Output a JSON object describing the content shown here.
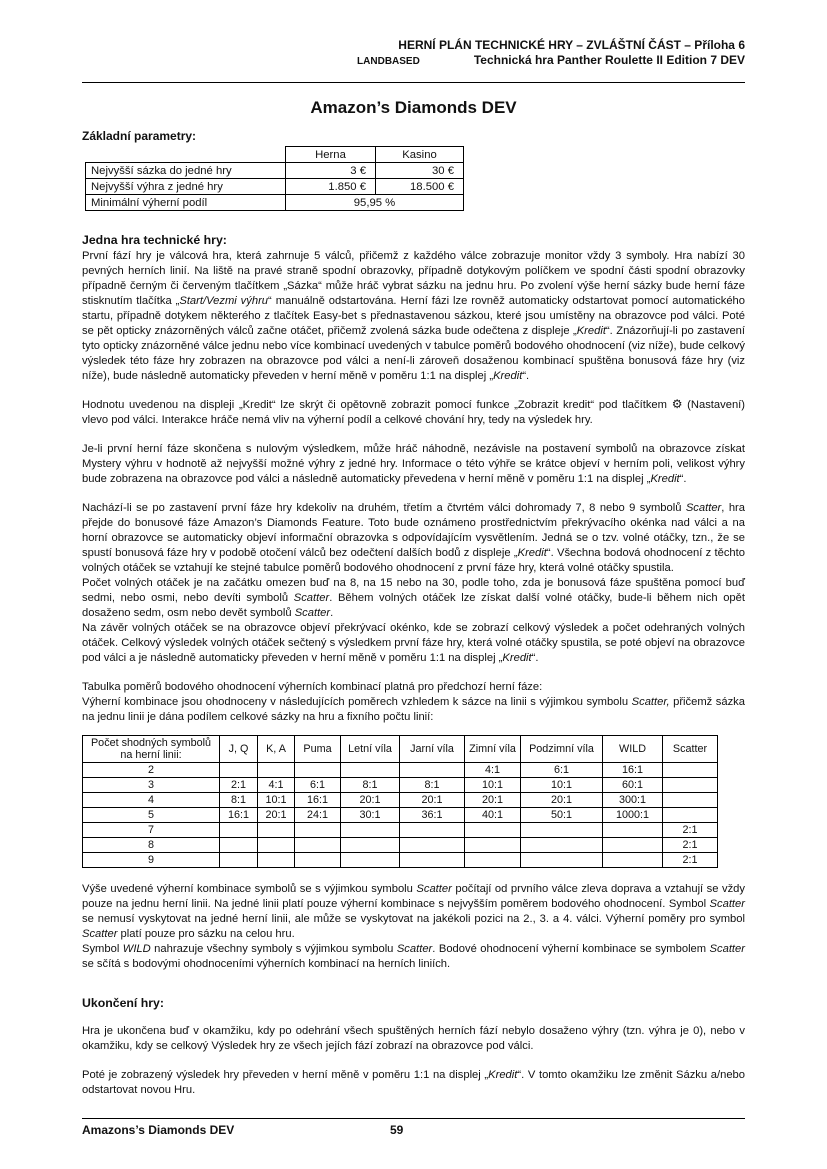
{
  "header": {
    "line1": "HERNÍ PLÁN TECHNICKÉ HRY – ZVLÁŠTNÍ ČÁST – Příloha 6",
    "landbased": "LANDBASED",
    "line2": "Technická hra Panther Roulette II Edition 7 DEV"
  },
  "title": "Amazon’s Diamonds DEV",
  "icons": {
    "gear": "⚙"
  },
  "params": {
    "heading": "Základní parametry:",
    "col_headers": [
      "Herna",
      "Kasino"
    ],
    "rows": [
      {
        "label": "Nejvyšší sázka do jedné hry",
        "herna": "3 €",
        "kasino": "30 €"
      },
      {
        "label": "Nejvyšší výhra z jedné hry",
        "herna": "1.850 €",
        "kasino": "18.500 €"
      },
      {
        "label": "Minimální výherní podíl",
        "span": "95,95 %"
      }
    ]
  },
  "body": {
    "heading1": "Jedna hra technické hry:",
    "p1": [
      {
        "t": "První fází hry je válcová hra, která zahrnuje 5 válců, přičemž z každého válce zobrazuje monitor vždy 3 symboly. Hra nabízí 30 pevných herních linií. Na liště na pravé straně spodní obrazovky, případně dotykovým políčkem ve spodní části spodní obrazovky případně černým či červeným tlačítkem „Sázka“ může hráč vybrat sázku na jednu hru. Po zvolení výše herní sázky bude herní fáze stisknutím tlačítka „"
      },
      {
        "t": "Start/Vezmi výhru",
        "i": true
      },
      {
        "t": "“ manuálně odstartována. Herní fázi lze rovněž automaticky odstartovat pomocí automatického startu, případně dotykem některého z tlačítek Easy-bet s přednastavenou sázkou, které jsou umístěny na obrazovce pod válci. Poté se pět opticky znázorněných válců začne otáčet, přičemž zvolená sázka bude odečtena z displeje „"
      },
      {
        "t": "Kredit",
        "i": true
      },
      {
        "t": "“. Znázorňují-li po zastavení tyto opticky znázorněné válce jednu nebo více kombinací uvedených v tabulce poměrů bodového ohodnocení (viz níže), bude celkový výsledek této fáze hry zobrazen na obrazovce pod válci a není-li zároveň dosaženou kombinací spuštěna bonusová fáze hry (viz níže), bude následně automaticky převeden v herní měně v poměru 1:1 na displej „"
      },
      {
        "t": "Kredit",
        "i": true
      },
      {
        "t": "“."
      }
    ],
    "p2": [
      {
        "t": "Hodnotu uvedenou na displeji „Kredit“ lze skrýt či opětovně zobrazit pomocí funkce „Zobrazit kredit“ pod tlačítkem "
      },
      {
        "icon": "gear"
      },
      {
        "t": " (Nastavení) vlevo pod válci. Interakce hráče nemá vliv na výherní podíl a celkové chování hry, tedy na výsledek hry."
      }
    ],
    "p3": [
      {
        "t": "Je-li první herní fáze skončena s nulovým výsledkem, může hráč náhodně, nezávisle na postavení symbolů na obrazovce získat Mystery výhru v hodnotě až nejvyšší možné výhry z jedné hry. Informace o této výhře se krátce objeví v herním poli, velikost výhry bude zobrazena na obrazovce pod válci a následně automaticky převedena v herní měně v poměru 1:1 na displej „"
      },
      {
        "t": "Kredit",
        "i": true
      },
      {
        "t": "“."
      }
    ],
    "p4a": [
      {
        "t": "Nachází-li se po zastavení první fáze hry kdekoliv na druhém, třetím a čtvrtém válci dohromady 7, 8 nebo 9 symbolů "
      },
      {
        "t": "Scatter",
        "i": true
      },
      {
        "t": ", hra přejde do bonusové fáze Amazon’s Diamonds Feature. Toto bude oznámeno prostřednictvím překrývacího okénka nad válci a na horní obrazovce se automaticky objeví informační obrazovka s odpovídajícím vysvětlením. Jedná se o tzv. volné otáčky, tzn., že se spustí bonusová fáze hry v podobě otočení válců bez odečtení dalších bodů z displeje „"
      },
      {
        "t": "Kredit",
        "i": true
      },
      {
        "t": "“. Všechna bodová ohodnocení z těchto volných otáček se vztahují ke stejné tabulce poměrů bodového ohodnocení z první fáze hry, která volné otáčky spustila."
      }
    ],
    "p4b": [
      {
        "t": "Počet volných otáček je na začátku omezen buď na 8, na 15 nebo na 30, podle toho, zda je bonusová fáze spuštěna pomocí buď sedmi, nebo osmi, nebo devíti symbolů "
      },
      {
        "t": "Scatter",
        "i": true
      },
      {
        "t": ". Během volných otáček lze získat další volné otáčky, bude-li během nich opět dosaženo sedm, osm nebo devět symbolů "
      },
      {
        "t": "Scatter",
        "i": true
      },
      {
        "t": "."
      }
    ],
    "p4c": [
      {
        "t": "Na závěr volných otáček se na obrazovce objeví překrývací okénko, kde se zobrazí celkový výsledek a počet odehraných volných otáček. Celkový výsledek volných otáček sečtený s výsledkem první fáze hry, která volné otáčky spustila, se poté objeví na obrazovce pod válci a je následně automaticky převeden v herní měně v poměru 1:1 na displej „"
      },
      {
        "t": "Kredit",
        "i": true
      },
      {
        "t": "“."
      }
    ],
    "p5a": [
      {
        "t": "Tabulka poměrů bodového ohodnocení výherních kombinací platná pro předchozí herní fáze:"
      }
    ],
    "p5b": [
      {
        "t": "Výherní kombinace jsou ohodnoceny v následujících poměrech vzhledem k sázce na linii s výjimkou symbolu "
      },
      {
        "t": "Scatter,",
        "i": true
      },
      {
        "t": " přičemž sázka na jednu linii je dána podílem celkové sázky na hru a fixního počtu linií:"
      }
    ],
    "p6a": [
      {
        "t": "Výše uvedené výherní kombinace symbolů se s výjimkou symbolu "
      },
      {
        "t": "Scatter",
        "i": true
      },
      {
        "t": " počítají od prvního válce zleva doprava a vztahují se vždy pouze na jednu herní linii. Na jedné linii platí pouze výherní kombinace s nejvyšším poměrem bodového ohodnocení. Symbol "
      },
      {
        "t": "Scatter",
        "i": true
      },
      {
        "t": " se nemusí vyskytovat na jedné herní linii, ale může se vyskytovat na jakékoli pozici na 2., 3. a 4. válci. Výherní poměry pro symbol "
      },
      {
        "t": "Scatter",
        "i": true
      },
      {
        "t": " platí pouze pro sázku na celou hru."
      }
    ],
    "p6b": [
      {
        "t": "Symbol "
      },
      {
        "t": "WILD",
        "i": true
      },
      {
        "t": " nahrazuje všechny symboly s výjimkou symbolu "
      },
      {
        "t": "Scatter",
        "i": true
      },
      {
        "t": ". Bodové ohodnocení výherní kombinace se symbolem "
      },
      {
        "t": "Scatter",
        "i": true
      },
      {
        "t": " se sčítá s bodovými ohodnoceními výherních kombinací na herních liniích."
      }
    ],
    "heading2": "Ukončení hry:",
    "p7": [
      {
        "t": "Hra je ukončena buď v okamžiku, kdy po odehrání všech spuštěných herních fází nebylo dosaženo výhry (tzn. výhra je 0), nebo v okamžiku, kdy se celkový Výsledek hry ze všech jejích fází zobrazí na obrazovce pod válci."
      }
    ],
    "p8": [
      {
        "t": "Poté je zobrazený výsledek hry převeden v herní měně v poměru 1:1 na displej „"
      },
      {
        "t": "Kredit",
        "i": true
      },
      {
        "t": "“. V tomto okamžiku lze změnit Sázku a/nebo odstartovat novou Hru."
      }
    ]
  },
  "paytable": {
    "columns": [
      "Počet shodných symbolů\nna herní linii:",
      "J, Q",
      "K, A",
      "Puma",
      "Letní víla",
      "Jarní víla",
      "Zimní víla",
      "Podzimní víla",
      "WILD",
      "Scatter"
    ],
    "rows": [
      {
        "count": "2",
        "values": [
          "",
          "",
          "",
          "",
          "",
          "4:1",
          "6:1",
          "16:1",
          ""
        ]
      },
      {
        "count": "3",
        "values": [
          "2:1",
          "4:1",
          "6:1",
          "8:1",
          "8:1",
          "10:1",
          "10:1",
          "60:1",
          ""
        ]
      },
      {
        "count": "4",
        "values": [
          "8:1",
          "10:1",
          "16:1",
          "20:1",
          "20:1",
          "20:1",
          "20:1",
          "300:1",
          ""
        ]
      },
      {
        "count": "5",
        "values": [
          "16:1",
          "20:1",
          "24:1",
          "30:1",
          "36:1",
          "40:1",
          "50:1",
          "1000:1",
          ""
        ]
      },
      {
        "count": "7",
        "values": [
          "",
          "",
          "",
          "",
          "",
          "",
          "",
          "",
          "2:1"
        ]
      },
      {
        "count": "8",
        "values": [
          "",
          "",
          "",
          "",
          "",
          "",
          "",
          "",
          "2:1"
        ]
      },
      {
        "count": "9",
        "values": [
          "",
          "",
          "",
          "",
          "",
          "",
          "",
          "",
          "2:1"
        ]
      }
    ]
  },
  "footer": {
    "left": "Amazons’s Diamonds DEV",
    "page": "59"
  }
}
